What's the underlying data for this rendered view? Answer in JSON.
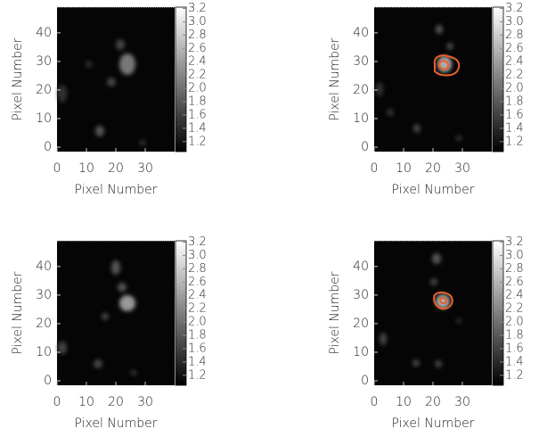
{
  "chart_data": [
    {
      "type": "image",
      "xlabel": "Pixel Number",
      "ylabel": "Pixel Number",
      "xlim": [
        0,
        40
      ],
      "ylim": [
        0,
        49
      ],
      "xticks": [
        0,
        10,
        20,
        30
      ],
      "yticks": [
        0,
        10,
        20,
        30,
        40
      ],
      "clim": [
        1.05,
        3.22
      ],
      "cticks": [
        1.2,
        1.4,
        1.6,
        1.8,
        {
          "value": 2.0,
          "label": "2.0"
        },
        2.2,
        2.4,
        2.6,
        2.8,
        {
          "value": 3.0,
          "label": "3.0"
        },
        3.2
      ]
    },
    {
      "type": "image",
      "xlabel": "Pixel Number",
      "ylabel": "Pixel Number",
      "xlim": [
        0,
        40
      ],
      "ylim": [
        0,
        49
      ],
      "xticks": [
        0,
        10,
        20,
        30
      ],
      "yticks": [
        0,
        10,
        20,
        30,
        40
      ],
      "clim": [
        1.05,
        3.22
      ],
      "cticks": [
        1.2,
        1.4,
        1.6,
        1.8,
        {
          "value": 2.0,
          "label": "2.0"
        },
        2.2,
        2.4,
        2.6,
        2.8,
        {
          "value": 3.0,
          "label": "3.0"
        },
        3.2
      ]
    },
    {
      "type": "image",
      "xlabel": "Pixel Number",
      "ylabel": "Pixel Number",
      "xlim": [
        0,
        40
      ],
      "ylim": [
        0,
        49
      ],
      "xticks": [
        0,
        10,
        20,
        30
      ],
      "yticks": [
        0,
        10,
        20,
        30,
        40
      ],
      "clim": [
        1.05,
        3.22
      ],
      "cticks": [
        1.2,
        1.4,
        1.6,
        1.8,
        {
          "value": 2.0,
          "label": "2.0"
        },
        2.2,
        2.4,
        2.6,
        2.8,
        {
          "value": 3.0,
          "label": "3.0"
        },
        3.2
      ]
    },
    {
      "type": "image",
      "xlabel": "Pixel Number",
      "ylabel": "Pixel Number",
      "xlim": [
        0,
        40
      ],
      "ylim": [
        0,
        49
      ],
      "xticks": [
        0,
        10,
        20,
        30
      ],
      "yticks": [
        0,
        10,
        20,
        30,
        40
      ],
      "clim": [
        1.05,
        3.22
      ],
      "cticks": [
        1.2,
        1.4,
        1.6,
        1.8,
        {
          "value": 2.0,
          "label": "2.0"
        },
        2.2,
        2.4,
        2.6,
        2.8,
        {
          "value": 3.0,
          "label": "3.0"
        },
        3.2
      ]
    }
  ]
}
